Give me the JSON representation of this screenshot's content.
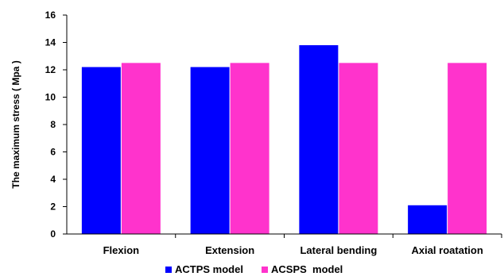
{
  "chart_data": {
    "type": "bar",
    "title": "",
    "xlabel": "",
    "ylabel": "The maximum stress ( Mpa )",
    "categories": [
      "Flexion",
      "Extension",
      "Lateral bending",
      "Axial roatation"
    ],
    "series": [
      {
        "name": "ACTPS model",
        "values": [
          12.2,
          12.2,
          13.8,
          2.1
        ],
        "color": "#0000ff"
      },
      {
        "name": "ACSPS  model",
        "values": [
          12.5,
          12.5,
          12.5,
          12.5
        ],
        "color": "#ff33cc"
      }
    ],
    "ylim": [
      0,
      16
    ],
    "yticks": [
      0,
      2,
      4,
      6,
      8,
      10,
      12,
      14,
      16
    ],
    "grid": false,
    "legend_position": "bottom"
  }
}
